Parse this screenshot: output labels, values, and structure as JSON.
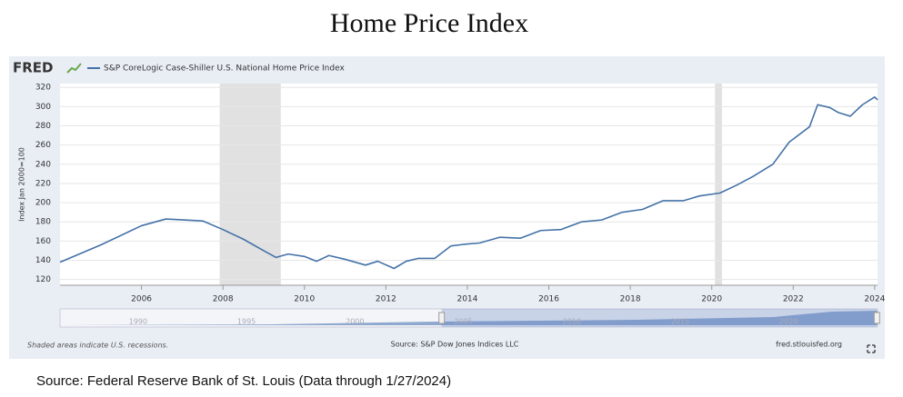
{
  "chart_data": {
    "type": "line",
    "title": "Home Price Index",
    "logo": "FRED",
    "series": [
      {
        "name": "S&P CoreLogic Case-Shiller U.S. National Home Price Index",
        "color": "#4572a7",
        "x": [
          2004.0,
          2005.0,
          2006.0,
          2006.6,
          2007.5,
          2008.0,
          2008.5,
          2009.0,
          2009.3,
          2009.6,
          2010.0,
          2010.3,
          2010.6,
          2011.0,
          2011.5,
          2011.8,
          2012.2,
          2012.5,
          2012.8,
          2013.2,
          2013.6,
          2014.0,
          2014.3,
          2014.8,
          2015.3,
          2015.8,
          2016.3,
          2016.8,
          2017.3,
          2017.8,
          2018.3,
          2018.8,
          2019.3,
          2019.7,
          2020.2,
          2020.6,
          2021.0,
          2021.5,
          2021.9,
          2022.4,
          2022.6,
          2022.9,
          2023.1,
          2023.4,
          2023.7,
          2024.0,
          2024.07
        ],
        "values": [
          138,
          156,
          176,
          183,
          181,
          172,
          162,
          150,
          143,
          146.5,
          144,
          139,
          145,
          141,
          135,
          139,
          131.5,
          139,
          142,
          142,
          155,
          157,
          158,
          164,
          163,
          171,
          172,
          180,
          182,
          190,
          193,
          202,
          202,
          207,
          210,
          218,
          227,
          240,
          263,
          279,
          302,
          299,
          294,
          290,
          302,
          310,
          307
        ]
      }
    ],
    "y_label": "Index Jan 2000=100",
    "xlim": [
      2004.0,
      2024.07
    ],
    "xticks": [
      2006,
      2008,
      2010,
      2012,
      2014,
      2016,
      2018,
      2020,
      2022,
      2024
    ],
    "ylim": [
      114,
      324
    ],
    "yticks": [
      120,
      140,
      160,
      180,
      200,
      220,
      240,
      260,
      280,
      300,
      320
    ],
    "grid": true,
    "recessions": [
      [
        2007.92,
        2009.42
      ],
      [
        2020.08,
        2020.25
      ]
    ],
    "recession_color": "#e1e1e1",
    "navigator_xlim": [
      1986.4,
      2024.1
    ],
    "navigator_xticks": [
      1990,
      1995,
      2000,
      2005,
      2010,
      2015,
      2020
    ],
    "recession_note": "Shaded areas indicate U.S. recessions.",
    "source_note": "Source: S&P Dow Jones Indices LLC",
    "site": "fred.stlouisfed.org",
    "footer": "Source: Federal Reserve Bank of St. Louis (Data through 1/27/2024)"
  }
}
